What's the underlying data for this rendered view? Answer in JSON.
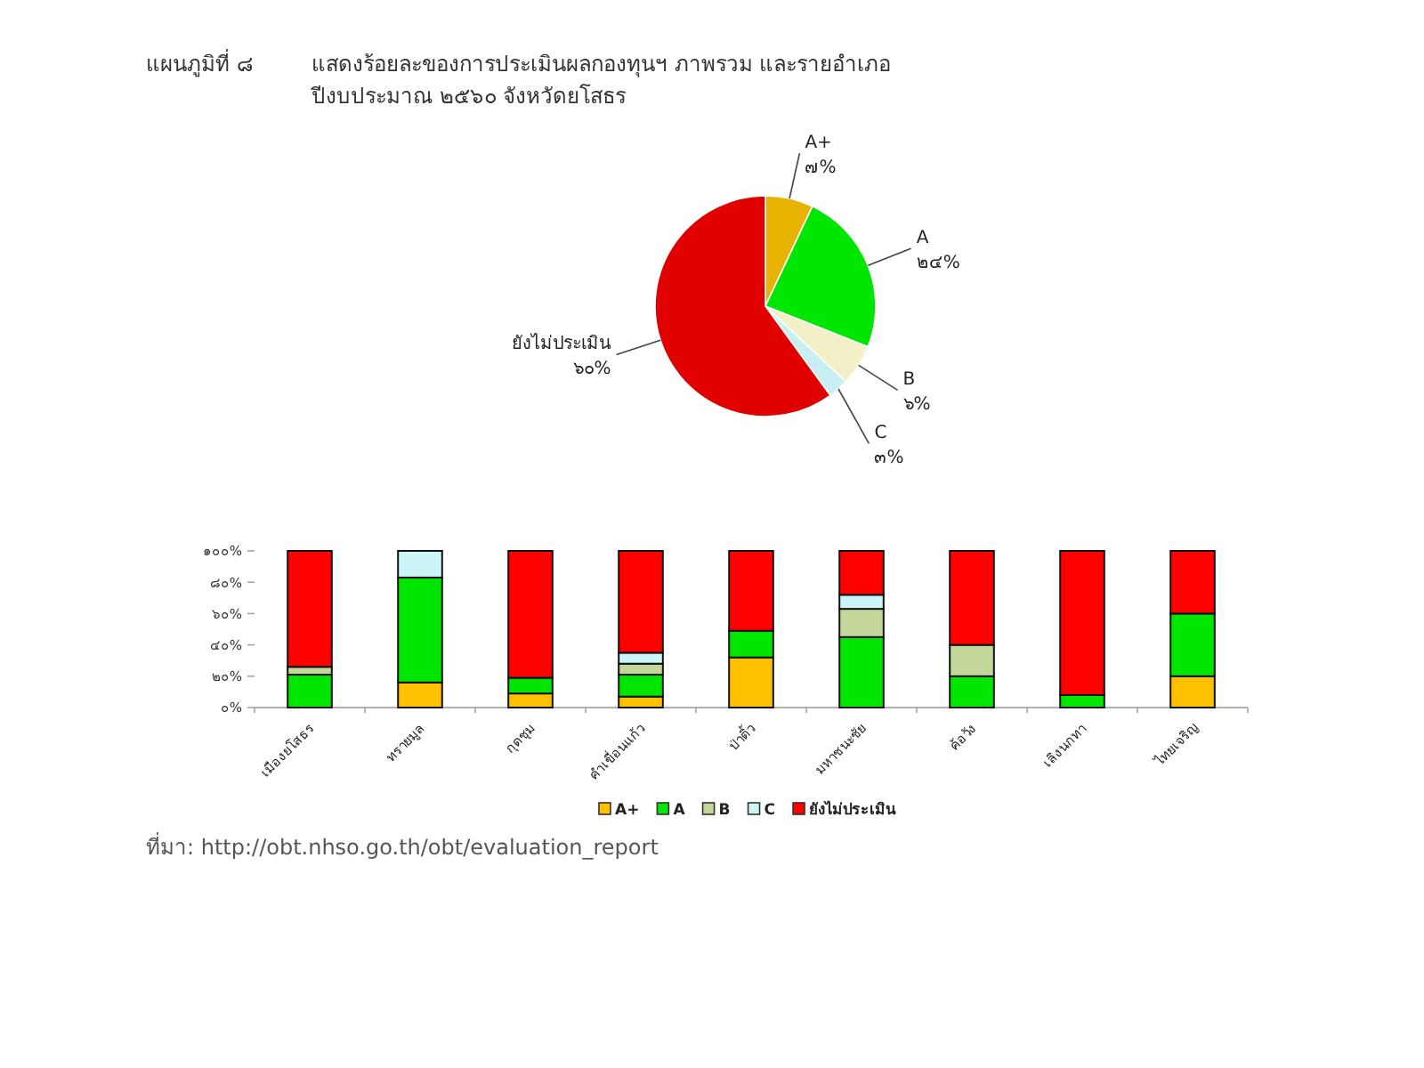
{
  "chart_data": [
    {
      "type": "pie",
      "title": "แผนภูมิที่ ๘",
      "subtitle": "แสดงร้อยละของการประเมินผลกองทุนฯ ภาพรวม และรายอำเภอ\nปีงบประมาณ ๒๕๖๐ จังหวัดยโสธร",
      "categories": [
        "A+",
        "A",
        "B",
        "C",
        "ยังไม่ประเมิน"
      ],
      "values": [
        7,
        24,
        6,
        3,
        60
      ],
      "value_labels": [
        "๗%",
        "๒๔%",
        "๖%",
        "๓%",
        "๖๐%"
      ],
      "colors": [
        "#e6b400",
        "#00e600",
        "#f3efc6",
        "#c8eff2",
        "#e00000"
      ]
    },
    {
      "type": "bar",
      "stacked": true,
      "categories": [
        "เมืองยโสธร",
        "ทรายมูล",
        "กุดชุม",
        "คำเขื่อนแก้ว",
        "ป่าติ้ว",
        "มหาชนะชัย",
        "ค้อวัง",
        "เลิงนกทา",
        "ไทยเจริญ"
      ],
      "series": [
        {
          "name": "A+",
          "color": "#ffc000",
          "values": [
            0,
            16,
            9,
            7,
            32,
            0,
            0,
            0,
            20
          ]
        },
        {
          "name": "A",
          "color": "#00e600",
          "values": [
            21,
            67,
            10,
            14,
            17,
            45,
            20,
            8,
            40
          ]
        },
        {
          "name": "B",
          "color": "#c4d79b",
          "values": [
            5,
            0,
            0,
            7,
            0,
            18,
            20,
            0,
            0
          ]
        },
        {
          "name": "C",
          "color": "#ccf5f7",
          "values": [
            0,
            17,
            0,
            7,
            0,
            9,
            0,
            0,
            0
          ]
        },
        {
          "name": "ยังไม่ประเมิน",
          "color": "#ff0000",
          "values": [
            74,
            0,
            81,
            65,
            51,
            28,
            60,
            92,
            40
          ]
        }
      ],
      "ylim": [
        0,
        100
      ],
      "yticks": [
        {
          "value": 0,
          "label": "๐%"
        },
        {
          "value": 20,
          "label": "๒๐%"
        },
        {
          "value": 40,
          "label": "๔๐%"
        },
        {
          "value": 60,
          "label": "๖๐%"
        },
        {
          "value": 80,
          "label": "๘๐%"
        },
        {
          "value": 100,
          "label": "๑๐๐%"
        }
      ],
      "legend": "bottom",
      "annotations": [
        "ที่มา: http://obt.nhso.go.th/obt/evaluation_report"
      ]
    }
  ]
}
